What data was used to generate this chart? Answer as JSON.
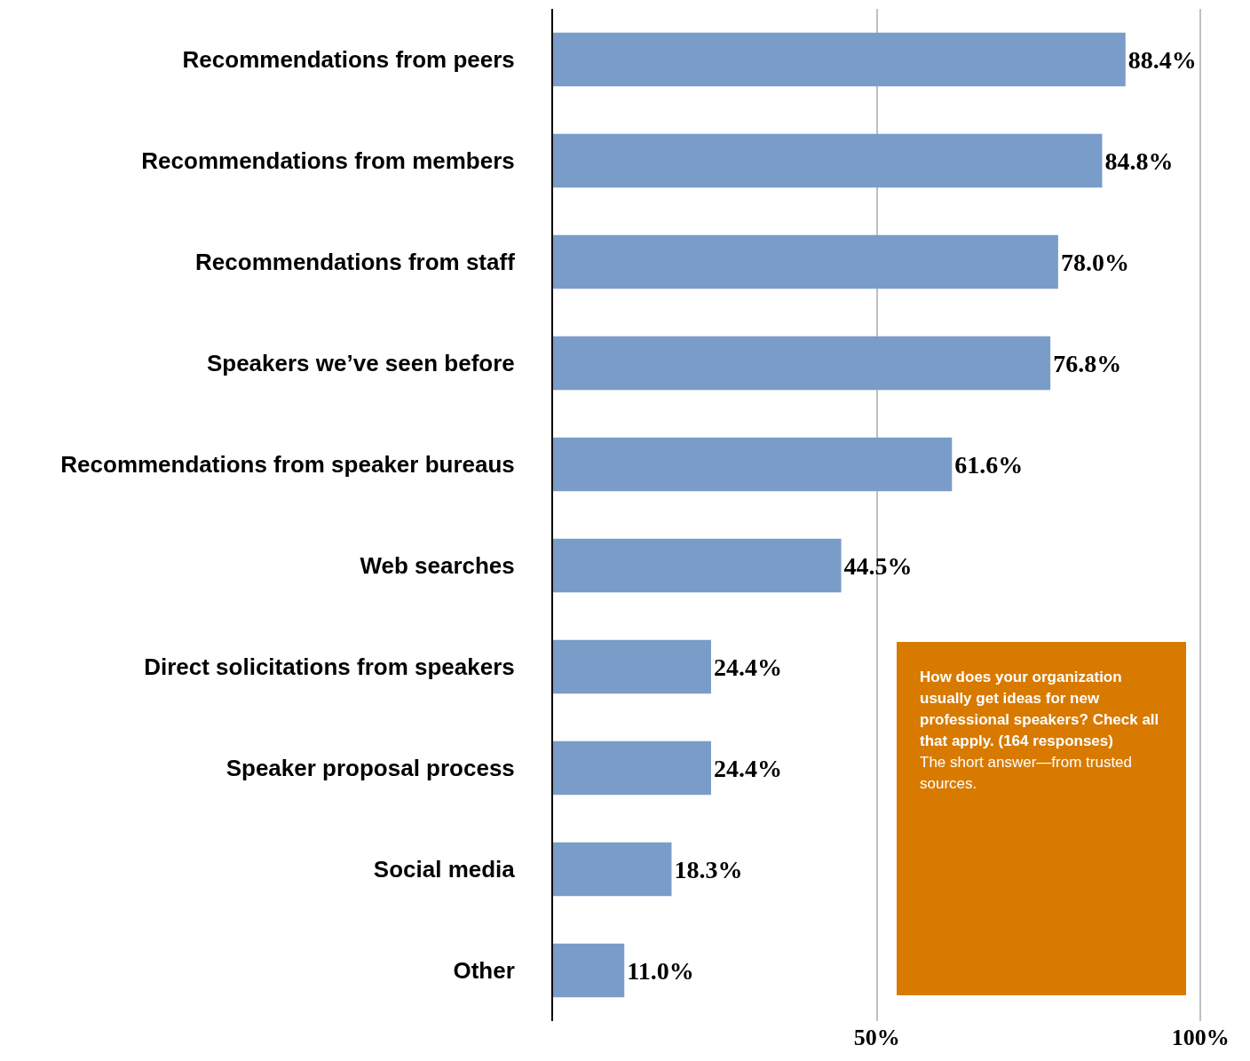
{
  "chart_data": {
    "type": "bar",
    "orientation": "horizontal",
    "title": "How does your organization usually get ideas for new professional speakers? Check all that apply. (164 responses)",
    "subtitle": "The short answer—from trusted sources.",
    "categories": [
      "Recommendations from peers",
      "Recommendations from members",
      "Recommendations from staff",
      "Speakers we’ve seen before",
      "Recommendations from speaker bureaus",
      "Web searches",
      "Direct solicitations from speakers",
      "Speaker proposal process",
      "Social media",
      "Other"
    ],
    "values": [
      88.4,
      84.8,
      78.0,
      76.8,
      61.6,
      44.5,
      24.4,
      24.4,
      18.3,
      11.0
    ],
    "value_labels": [
      "88.4%",
      "84.8%",
      "78.0%",
      "76.8%",
      "61.6%",
      "44.5%",
      "24.4%",
      "24.4%",
      "18.3%",
      "11.0%"
    ],
    "color": "#7a9cc8",
    "xlim": [
      0,
      100.5
    ],
    "xticks": [
      {
        "value": 50,
        "label": "50%"
      },
      {
        "value": 100,
        "label": "100%"
      }
    ],
    "grid": "x"
  }
}
